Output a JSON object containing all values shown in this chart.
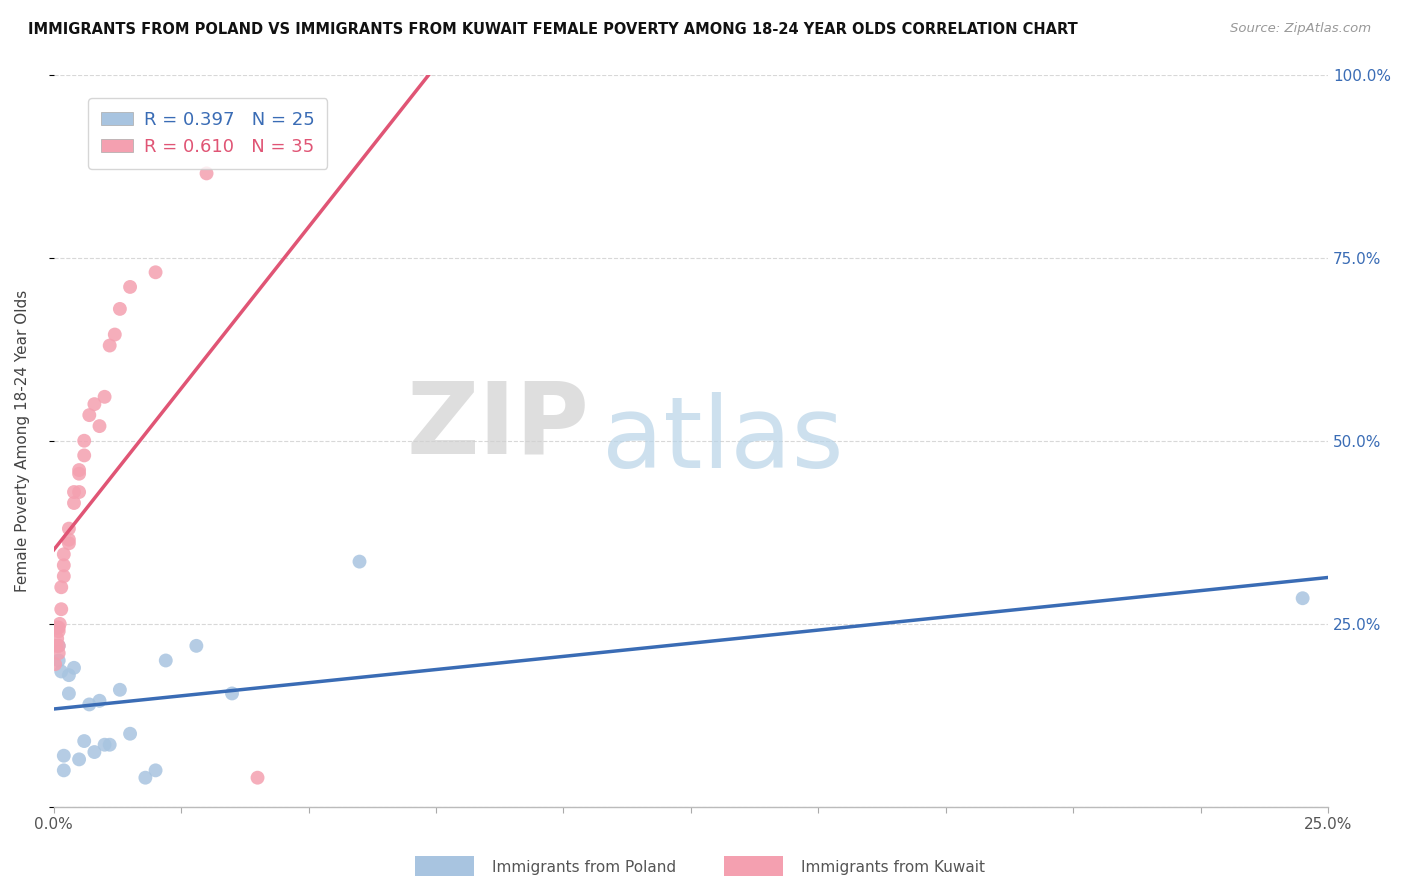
{
  "title": "IMMIGRANTS FROM POLAND VS IMMIGRANTS FROM KUWAIT FEMALE POVERTY AMONG 18-24 YEAR OLDS CORRELATION CHART",
  "source": "Source: ZipAtlas.com",
  "ylabel": "Female Poverty Among 18-24 Year Olds",
  "watermark_zip": "ZIP",
  "watermark_atlas": "atlas",
  "poland_x": [
    0.0005,
    0.001,
    0.001,
    0.0015,
    0.002,
    0.002,
    0.003,
    0.003,
    0.004,
    0.005,
    0.006,
    0.007,
    0.008,
    0.009,
    0.01,
    0.011,
    0.013,
    0.015,
    0.018,
    0.02,
    0.022,
    0.028,
    0.035,
    0.06,
    0.245
  ],
  "poland_y": [
    0.245,
    0.22,
    0.2,
    0.185,
    0.07,
    0.05,
    0.155,
    0.18,
    0.19,
    0.065,
    0.09,
    0.14,
    0.075,
    0.145,
    0.085,
    0.085,
    0.16,
    0.1,
    0.04,
    0.05,
    0.2,
    0.22,
    0.155,
    0.335,
    0.285
  ],
  "kuwait_x": [
    0.0003,
    0.0005,
    0.0007,
    0.0008,
    0.001,
    0.001,
    0.001,
    0.001,
    0.0012,
    0.0015,
    0.0015,
    0.002,
    0.002,
    0.002,
    0.003,
    0.003,
    0.003,
    0.004,
    0.004,
    0.005,
    0.005,
    0.005,
    0.006,
    0.006,
    0.007,
    0.008,
    0.009,
    0.01,
    0.011,
    0.012,
    0.013,
    0.015,
    0.02,
    0.03,
    0.04
  ],
  "kuwait_y": [
    0.195,
    0.22,
    0.23,
    0.245,
    0.245,
    0.24,
    0.22,
    0.21,
    0.25,
    0.27,
    0.3,
    0.315,
    0.33,
    0.345,
    0.36,
    0.365,
    0.38,
    0.415,
    0.43,
    0.43,
    0.455,
    0.46,
    0.48,
    0.5,
    0.535,
    0.55,
    0.52,
    0.56,
    0.63,
    0.645,
    0.68,
    0.71,
    0.73,
    0.865,
    0.04
  ],
  "poland_color": "#a8c4e0",
  "kuwait_color": "#f4a0b0",
  "poland_line_color": "#3a6cb5",
  "kuwait_line_color": "#e05575",
  "legend_poland_R": "0.397",
  "legend_poland_N": "25",
  "legend_kuwait_R": "0.610",
  "legend_kuwait_N": "35",
  "xlim": [
    0.0,
    0.25
  ],
  "ylim": [
    0.0,
    1.0
  ],
  "background_color": "#ffffff",
  "grid_color": "#d8d8d8"
}
